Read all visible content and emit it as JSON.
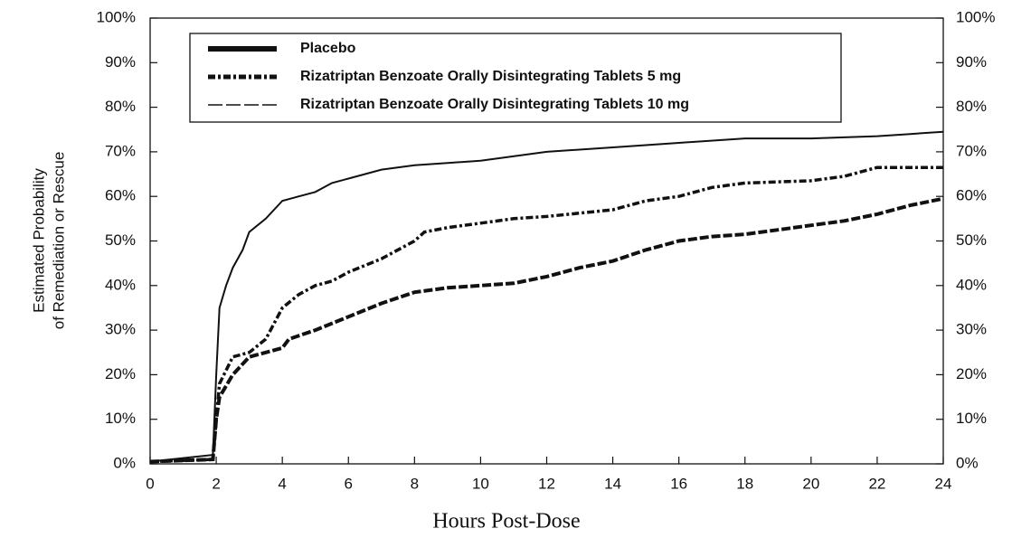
{
  "chart_data": {
    "type": "line",
    "xlabel": "Hours Post-Dose",
    "ylabel": [
      "Estimated Probability",
      "of Remediation or Rescue"
    ],
    "xlim": [
      0,
      24
    ],
    "xticks": [
      0,
      2,
      4,
      6,
      8,
      10,
      12,
      14,
      16,
      18,
      20,
      22,
      24
    ],
    "ylim": [
      0,
      100
    ],
    "yticks": [
      {
        "value": 0,
        "label": "0%"
      },
      {
        "value": 10,
        "label": "10%"
      },
      {
        "value": 20,
        "label": "20%"
      },
      {
        "value": 30,
        "label": "30%"
      },
      {
        "value": 40,
        "label": "40%"
      },
      {
        "value": 50,
        "label": "50%"
      },
      {
        "value": 60,
        "label": "60%"
      },
      {
        "value": 70,
        "label": "70%"
      },
      {
        "value": 80,
        "label": "80%"
      },
      {
        "value": 90,
        "label": "90%"
      },
      {
        "value": 100,
        "label": "100%"
      }
    ],
    "y2lim": [
      0,
      100
    ],
    "y2ticks": [
      {
        "value": 0,
        "label": "0%"
      },
      {
        "value": 10,
        "label": "10%"
      },
      {
        "value": 20,
        "label": "20%"
      },
      {
        "value": 30,
        "label": "30%"
      },
      {
        "value": 40,
        "label": "40%"
      },
      {
        "value": 50,
        "label": "50%"
      },
      {
        "value": 60,
        "label": "60%"
      },
      {
        "value": 70,
        "label": "70%"
      },
      {
        "value": 80,
        "label": "80%"
      },
      {
        "value": 90,
        "label": "90%"
      },
      {
        "value": 100,
        "label": "100%"
      }
    ],
    "legend": "top-left",
    "series": [
      {
        "name": "Placebo",
        "color": "#111111",
        "style": "solid",
        "x": [
          0,
          1.9,
          2.0,
          2.1,
          2.3,
          2.5,
          2.8,
          3,
          3.5,
          4,
          4.5,
          5,
          5.5,
          6,
          7,
          8,
          9,
          10,
          12,
          14,
          16,
          18,
          20,
          22,
          23,
          24
        ],
        "values": [
          0.5,
          2,
          20,
          35,
          40,
          44,
          48,
          52,
          55,
          59,
          60,
          61,
          63,
          64,
          66,
          67,
          67.5,
          68,
          70,
          71,
          72,
          73,
          73,
          73.5,
          74,
          74.5
        ]
      },
      {
        "name": "Rizatriptan Benzoate Orally Disintegrating Tablets 5 mg",
        "color": "#111111",
        "style": "dashdot",
        "x": [
          0,
          1.9,
          2.0,
          2.1,
          2.5,
          3,
          3.5,
          4,
          4.5,
          5,
          5.5,
          6,
          7,
          8,
          8.3,
          9,
          10,
          11,
          12,
          14,
          15,
          16,
          17,
          18,
          20,
          21,
          22,
          24
        ],
        "values": [
          0.5,
          1,
          10,
          18,
          24,
          25,
          28,
          35,
          38,
          40,
          41,
          43,
          46,
          50,
          52,
          53,
          54,
          55,
          55.5,
          57,
          59,
          60,
          62,
          63,
          63.5,
          64.5,
          66.5,
          66.5
        ]
      },
      {
        "name": "Rizatriptan Benzoate Orally Disintegrating Tablets 10 mg",
        "color": "#111111",
        "style": "dash",
        "x": [
          0,
          1.9,
          2.0,
          2.1,
          2.5,
          3,
          3.5,
          4,
          4.2,
          5,
          6,
          7,
          8,
          9,
          10,
          11,
          12,
          13,
          14,
          15,
          16,
          17,
          18,
          19,
          20,
          21,
          22,
          23,
          24
        ],
        "values": [
          0.5,
          1,
          10,
          15,
          20,
          24,
          25,
          26,
          28,
          30,
          33,
          36,
          38.5,
          39.5,
          40,
          40.5,
          42,
          44,
          45.5,
          48,
          50,
          51,
          51.5,
          52.5,
          53.5,
          54.5,
          56,
          58,
          59.5
        ]
      }
    ]
  }
}
